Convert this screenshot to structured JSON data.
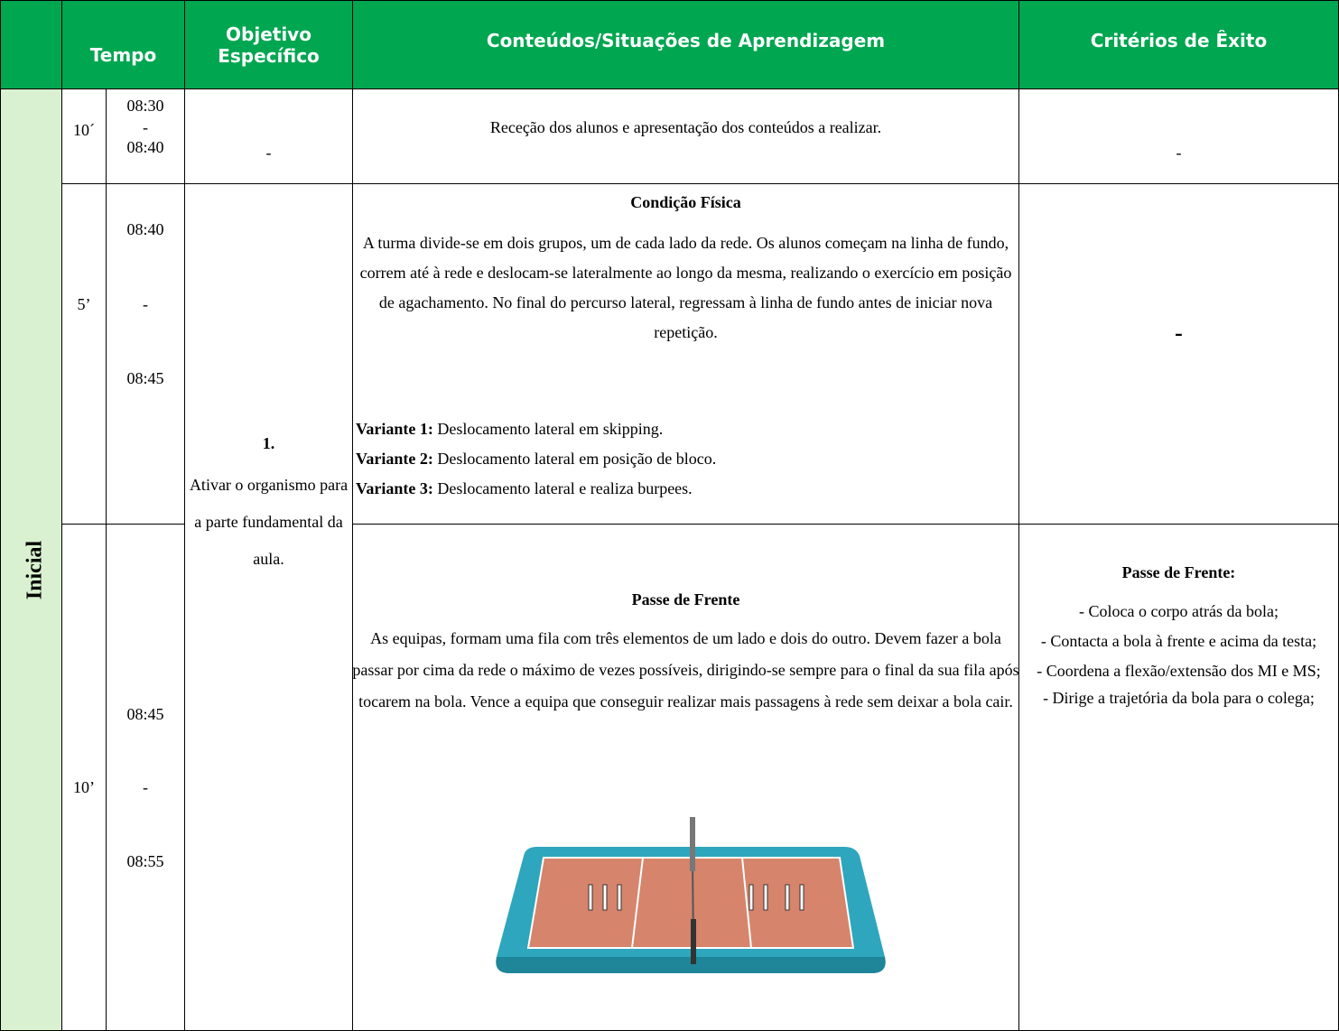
{
  "header": {
    "tempo": "Tempo",
    "objetivo": "Objetivo Específico",
    "conteudos": "Conteúdos/Situações de Aprendizagem",
    "criterios": "Critérios de Êxito"
  },
  "phase": "Inicial",
  "objective": {
    "number": "1.",
    "text": "Ativar o organismo para a parte fundamental da aula."
  },
  "rows": [
    {
      "duration": "10´",
      "time_start": "08:30",
      "time_sep": "-",
      "time_end": "08:40",
      "objective": "-",
      "content": {
        "text": "Receção dos alunos e apresentação dos conteúdos a realizar."
      },
      "criteria": {
        "text": "-"
      }
    },
    {
      "duration": "5’",
      "time_start": "08:40",
      "time_sep": "-",
      "time_end": "08:45",
      "content": {
        "title": "Condição Física",
        "text": "A turma divide-se em dois grupos, um de cada lado da rede. Os alunos começam na linha de fundo, correm até à rede e deslocam-se lateralmente ao longo da mesma, realizando o exercício em posição de agachamento. No final do percurso lateral, regressam à linha de fundo antes de iniciar nova repetição.",
        "variants": [
          {
            "label": "Variante 1:",
            "text": "Deslocamento lateral em skipping."
          },
          {
            "label": "Variante 2:",
            "text": "Deslocamento lateral em posição de bloco."
          },
          {
            "label": "Variante 3:",
            "text": "Deslocamento lateral e realiza burpees."
          }
        ]
      },
      "criteria": {
        "text": "-"
      }
    },
    {
      "duration": "10’",
      "time_start": "08:45",
      "time_sep": "-",
      "time_end": "08:55",
      "content": {
        "title": "Passe de Frente",
        "text": "As equipas, formam uma fila com três elementos de um lado e dois do outro. Devem fazer a bola passar por cima da rede o máximo de vezes possíveis, dirigindo-se sempre para o final da sua fila após tocarem na bola. Vence a equipa que conseguir realizar mais passagens à rede sem deixar a bola cair."
      },
      "criteria": {
        "title": "Passe de Frente:",
        "items": [
          "- Coloca o corpo atrás da bola;",
          "- Contacta a bola à frente e acima da testa;",
          "- Coordena a flexão/extensão dos MI e MS;",
          "- Dirige a trajetória da bola para o colega;"
        ]
      }
    }
  ]
}
